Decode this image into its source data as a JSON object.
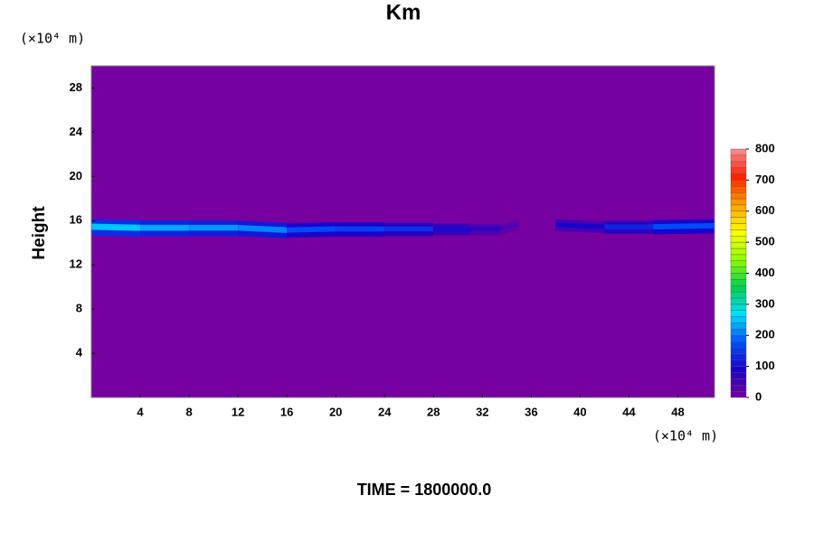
{
  "chart_data": {
    "type": "contour",
    "title": "Km",
    "x_unit_label": "(×10⁴ m)",
    "y_unit_label": "(×10⁴ m)",
    "y_label": "Height",
    "footer": "TIME = 1800000.0",
    "xlim": [
      0,
      51
    ],
    "ylim": [
      0,
      30
    ],
    "xticks": [
      4,
      8,
      12,
      16,
      20,
      24,
      28,
      32,
      36,
      40,
      44,
      48
    ],
    "yticks": [
      4,
      8,
      12,
      16,
      20,
      24,
      28
    ],
    "background_color": "#7700a0",
    "colormap": [
      "#7700a0",
      "#1a00c8",
      "#0050ff",
      "#00e0ff",
      "#00d050",
      "#90ff00",
      "#ffff00",
      "#ffa000",
      "#ff2000",
      "#ff9090"
    ],
    "clim": [
      0,
      800
    ],
    "cbar_ticks": [
      0,
      100,
      200,
      300,
      400,
      500,
      600,
      700,
      800
    ],
    "band": {
      "x": [
        0,
        4,
        8,
        12,
        16,
        20,
        24,
        28,
        31,
        33.5,
        35,
        38,
        42,
        46,
        51
      ],
      "y": [
        15.4,
        15.3,
        15.3,
        15.3,
        15.1,
        15.2,
        15.2,
        15.2,
        15.2,
        15.2,
        15.6,
        15.6,
        15.4,
        15.4,
        15.5
      ],
      "values": [
        250,
        230,
        220,
        210,
        170,
        160,
        140,
        100,
        70,
        40,
        null,
        90,
        130,
        170,
        240
      ]
    }
  }
}
